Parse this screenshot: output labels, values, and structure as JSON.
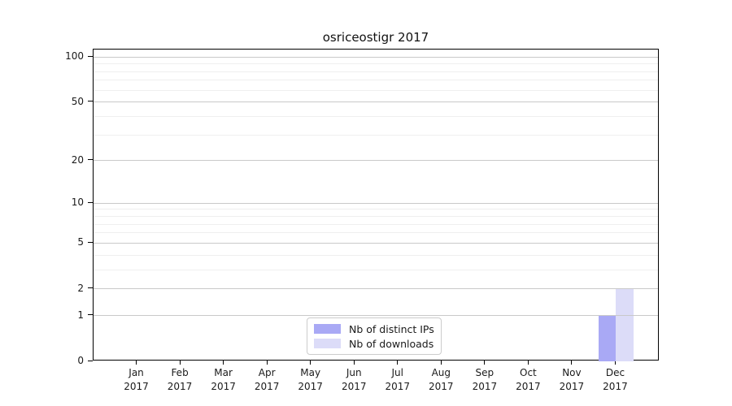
{
  "chart_data": {
    "type": "bar",
    "title": "osriceostigr 2017",
    "categories": [
      "Jan 2017",
      "Feb 2017",
      "Mar 2017",
      "Apr 2017",
      "May 2017",
      "Jun 2017",
      "Jul 2017",
      "Aug 2017",
      "Sep 2017",
      "Oct 2017",
      "Nov 2017",
      "Dec 2017"
    ],
    "series": [
      {
        "name": "Nb of distinct IPs",
        "color": "#a9a9f5",
        "values": [
          0,
          0,
          0,
          0,
          0,
          0,
          0,
          0,
          0,
          0,
          0,
          1
        ]
      },
      {
        "name": "Nb of downloads",
        "color": "#dcdcf8",
        "values": [
          0,
          0,
          0,
          0,
          0,
          0,
          0,
          0,
          0,
          0,
          0,
          2
        ]
      }
    ],
    "yscale": "log1p",
    "ylim": [
      0,
      112
    ],
    "yticks": [
      0,
      1,
      2,
      5,
      10,
      20,
      50,
      100
    ],
    "minor_yticks": [
      3,
      4,
      6,
      7,
      8,
      9,
      30,
      40,
      60,
      70,
      80,
      90
    ],
    "grid": "horizontal",
    "legend_position": "lower center"
  },
  "colors": {
    "background": "#ffffff",
    "axis": "#000000",
    "text": "#1a1a1a",
    "major_grid": "#c9c9c9",
    "minor_grid": "#efefef",
    "legend_border": "#cccccc"
  }
}
